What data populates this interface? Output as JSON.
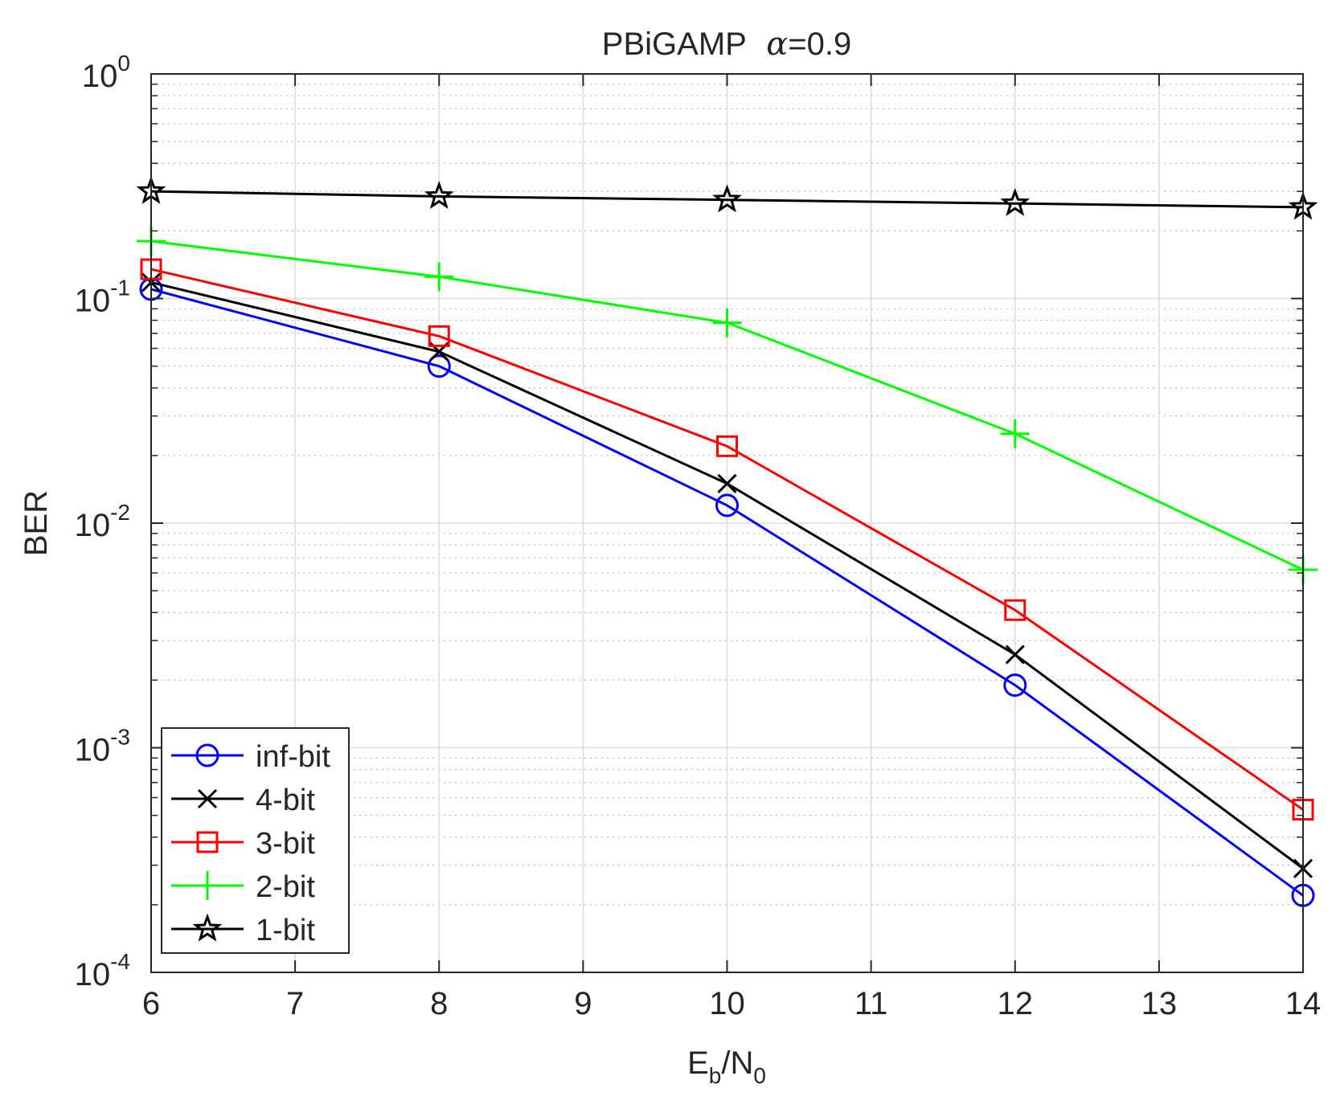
{
  "chart_data": {
    "type": "line",
    "title_prefix": "PBiGAMP",
    "title_symbol": "α",
    "title_suffix": "=0.9",
    "xlabel": {
      "base": "E",
      "sub1": "b",
      "mid": "/N",
      "sub2": "0"
    },
    "ylabel": "BER",
    "xlim": [
      6,
      14
    ],
    "ylim": [
      0.0001,
      1
    ],
    "yscale": "log",
    "grid": true,
    "minor_grid": true,
    "legend_position": "bottom-left",
    "xticks": [
      "6",
      "7",
      "8",
      "9",
      "10",
      "11",
      "12",
      "13",
      "14"
    ],
    "yticks": [
      {
        "base": "10",
        "exp": "0"
      },
      {
        "base": "10",
        "exp": "-1"
      },
      {
        "base": "10",
        "exp": "-2"
      },
      {
        "base": "10",
        "exp": "-3"
      },
      {
        "base": "10",
        "exp": "-4"
      }
    ],
    "x": [
      6,
      8,
      10,
      12,
      14
    ],
    "series": [
      {
        "name": "inf-bit",
        "color": "#0000ff",
        "marker": "circle",
        "values": [
          0.11,
          0.05,
          0.012,
          0.0019,
          0.00022
        ]
      },
      {
        "name": "4-bit",
        "color": "#000000",
        "marker": "x",
        "values": [
          0.118,
          0.058,
          0.015,
          0.0026,
          0.00029
        ]
      },
      {
        "name": "3-bit",
        "color": "#ff0000",
        "marker": "square",
        "values": [
          0.135,
          0.068,
          0.022,
          0.0041,
          0.00053
        ]
      },
      {
        "name": "2-bit",
        "color": "#00ff00",
        "marker": "plus",
        "values": [
          0.18,
          0.125,
          0.078,
          0.025,
          0.0062
        ]
      },
      {
        "name": "1-bit",
        "color": "#000000",
        "marker": "star",
        "values": [
          0.3,
          0.285,
          0.275,
          0.265,
          0.255
        ]
      }
    ]
  }
}
